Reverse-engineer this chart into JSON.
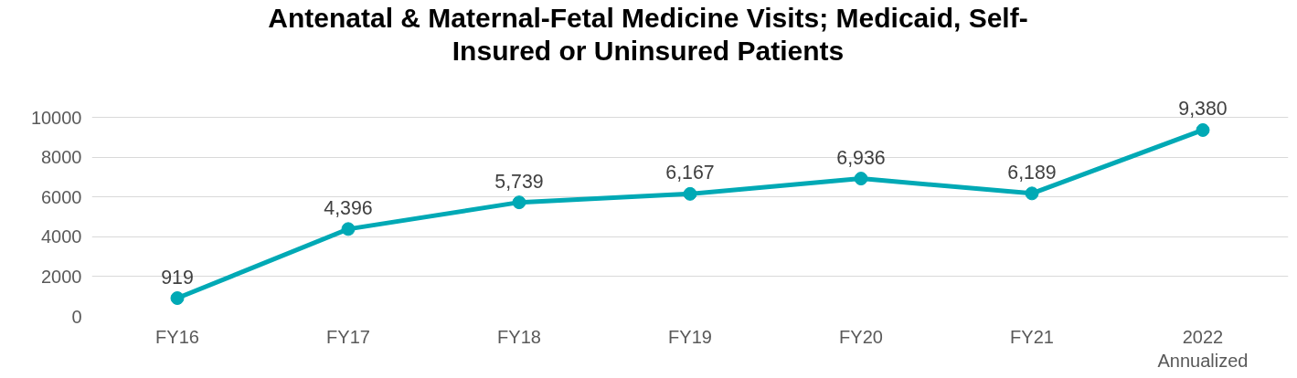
{
  "chart_data": {
    "type": "line",
    "title": "Antenatal & Maternal-Fetal Medicine Visits; Medicaid, Self-Insured or Uninsured Patients",
    "categories": [
      "FY16",
      "FY17",
      "FY18",
      "FY19",
      "FY20",
      "FY21",
      "2022\nAnnualized"
    ],
    "series": [
      {
        "color": "#00a9b5",
        "values": [
          919,
          4396,
          5739,
          6167,
          6936,
          6189,
          9380
        ],
        "value_labels": [
          "919",
          "4,396",
          "5,739",
          "6,167",
          "6,936",
          "6,189",
          "9,380"
        ]
      }
    ],
    "ylim": [
      0,
      10000
    ],
    "yticks": [
      0,
      2000,
      4000,
      6000,
      8000,
      10000
    ],
    "grid": "y",
    "marker": "circle",
    "line_style": "solid"
  }
}
